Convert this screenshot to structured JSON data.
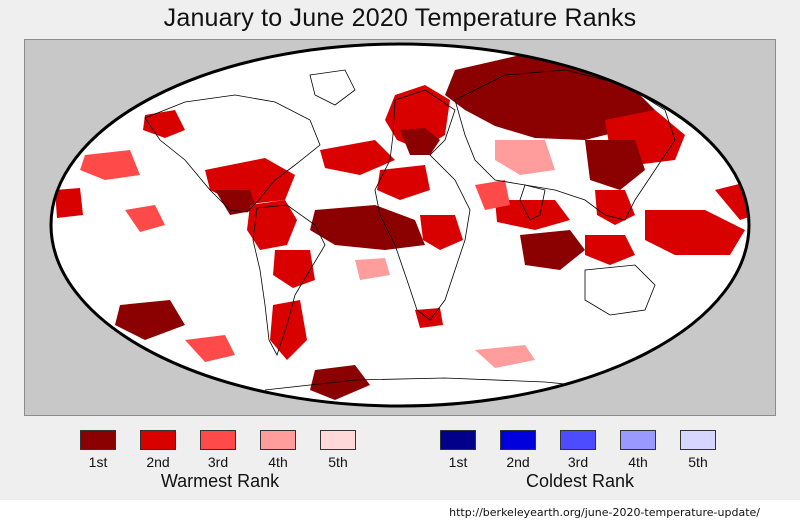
{
  "title": "January to June 2020 Temperature Ranks",
  "colors": {
    "warm": [
      "#8b0000",
      "#d90000",
      "#ff4a4a",
      "#ff9c9c",
      "#ffd9d9"
    ],
    "cold": [
      "#00008b",
      "#0000dd",
      "#4d4dff",
      "#9999ff",
      "#d6d6ff"
    ],
    "land": "#ffffff",
    "background": "#c8c8c8"
  },
  "legend": {
    "warm": {
      "title": "Warmest Rank",
      "items": [
        "1st",
        "2nd",
        "3rd",
        "4th",
        "5th"
      ]
    },
    "cold": {
      "title": "Coldest Rank",
      "items": [
        "1st",
        "2nd",
        "3rd",
        "4th",
        "5th"
      ]
    }
  },
  "source_url": "http://berkeleyearth.org/june-2020-temperature-update/"
}
